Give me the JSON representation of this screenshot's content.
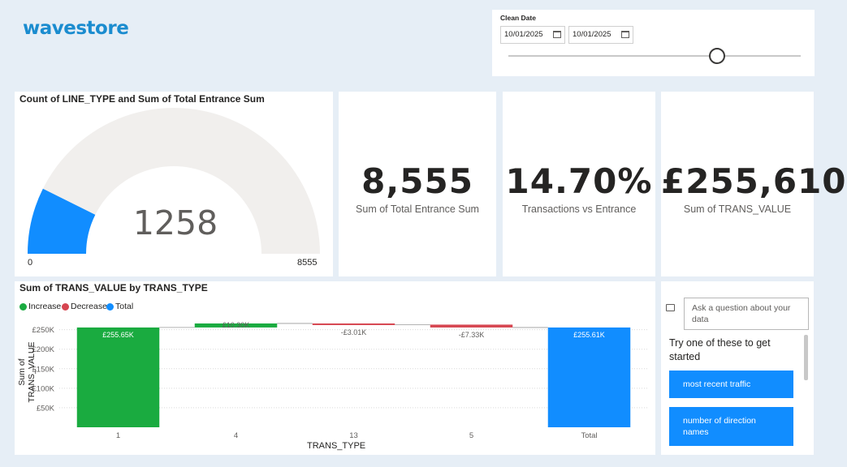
{
  "logo": {
    "text": "wavestore"
  },
  "slicer": {
    "title": "Clean Date",
    "start_date": "10/01/2025",
    "end_date": "10/01/2025",
    "calendar_icon": "calendar-icon"
  },
  "gauge": {
    "title": "Count of LINE_TYPE and Sum of Total Entrance Sum",
    "value": "1258",
    "min": "0",
    "max": "8555",
    "value_num": 1258,
    "max_num": 8555,
    "fill_color": "#118dff",
    "track_color": "#f1efed"
  },
  "kpis": [
    {
      "value": "8,555",
      "label": "Sum of Total Entrance Sum"
    },
    {
      "value": "14.70%",
      "label": "Transactions vs Entrance"
    },
    {
      "value": "£255,610",
      "label": "Sum of TRANS_VALUE"
    }
  ],
  "waterfall": {
    "title": "Sum of TRANS_VALUE by TRANS_TYPE",
    "legend": [
      {
        "label": "Increase",
        "color": "#1aab40"
      },
      {
        "label": "Decrease",
        "color": "#d64550"
      },
      {
        "label": "Total",
        "color": "#118dff"
      }
    ],
    "ylabel": "Sum of TRANS_VALUE",
    "xlabel": "TRANS_TYPE"
  },
  "chart_data": {
    "type": "bar",
    "subtype": "waterfall",
    "title": "Sum of TRANS_VALUE by TRANS_TYPE",
    "xlabel": "TRANS_TYPE",
    "ylabel": "Sum of TRANS_VALUE",
    "categories": [
      "1",
      "4",
      "13",
      "5",
      "Total"
    ],
    "values": [
      255650,
      10300,
      -3010,
      -7330,
      255610
    ],
    "value_labels": [
      "£255.65K",
      "£10.30K",
      "-£3.01K",
      "-£7.33K",
      "£255.61K"
    ],
    "kinds": [
      "increase",
      "increase",
      "decrease",
      "decrease",
      "total"
    ],
    "y_ticks": [
      "£50K",
      "£100K",
      "£150K",
      "£200K",
      "£250K"
    ],
    "y_tick_values": [
      50000,
      100000,
      150000,
      200000,
      250000
    ],
    "ylim": [
      0,
      270000
    ],
    "grid": true,
    "legend": "top-left"
  },
  "qa": {
    "placeholder": "Ask a question about your data",
    "prompt": "Try one of these to get started",
    "suggestions": [
      "most recent traffic",
      "number of direction names"
    ]
  }
}
